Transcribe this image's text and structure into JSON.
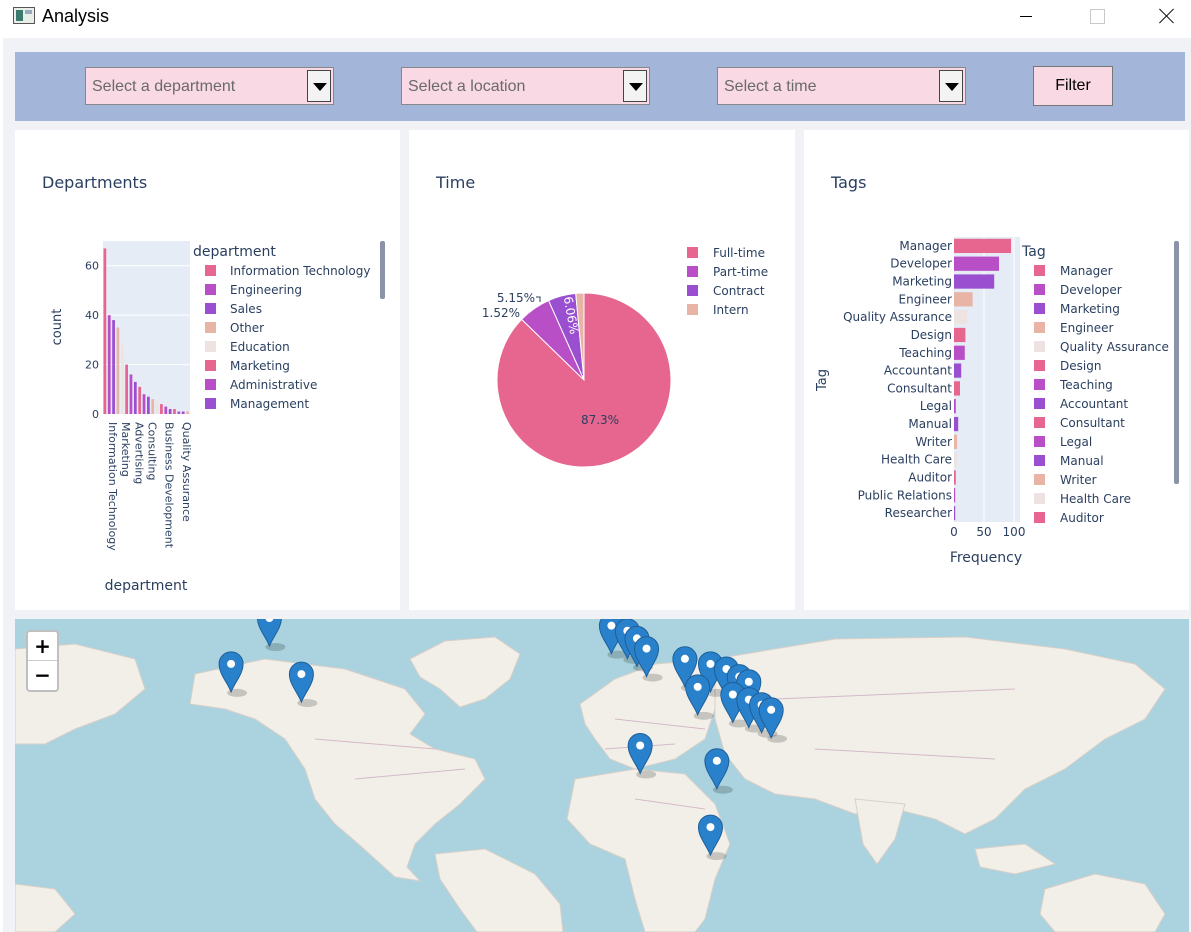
{
  "window": {
    "title": "Analysis"
  },
  "filters": {
    "department_placeholder": "Select a department",
    "location_placeholder": "Select a location",
    "time_placeholder": "Select a time",
    "filter_label": "Filter"
  },
  "colors": {
    "series": [
      "#e6668f",
      "#b94fc6",
      "#9a4fd0",
      "#e8b4a6",
      "#ede4e2",
      "#e6668f",
      "#b94fc6",
      "#9a4fd0"
    ],
    "plot_bg": "#e5ecf6",
    "map_water": "#aad3df",
    "map_land": "#f2efe9",
    "marker": "#2a81cb"
  },
  "chart_data": [
    {
      "id": "departments",
      "type": "bar",
      "title": "Departments",
      "xlabel": "department",
      "ylabel": "count",
      "ylim": [
        0,
        70
      ],
      "yticks": [
        0,
        20,
        40,
        60
      ],
      "legend_title": "department",
      "legend": [
        "Information Technology",
        "Engineering",
        "Sales",
        "Other",
        "Education",
        "Marketing",
        "Administrative",
        "Management"
      ],
      "tick_labels": [
        "Information Technology",
        "Marketing",
        "Advertising",
        "Consulting",
        "Business Development",
        "Quality Assurance"
      ],
      "values": [
        67,
        40,
        38,
        35,
        28,
        20,
        16,
        13,
        11,
        8,
        7,
        6,
        5,
        4,
        3,
        2,
        2,
        1,
        1,
        1
      ]
    },
    {
      "id": "time",
      "type": "pie",
      "title": "Time",
      "categories": [
        "Full-time",
        "Part-time",
        "Contract",
        "Intern"
      ],
      "values": [
        87.3,
        6.06,
        5.15,
        1.52
      ],
      "labels": [
        "87.3%",
        "6.06%",
        "5.15%",
        "1.52%"
      ]
    },
    {
      "id": "tags",
      "type": "bar",
      "orientation": "horizontal",
      "title": "Tags",
      "xlabel": "Frequency",
      "ylabel": "Tag",
      "xlim": [
        0,
        110
      ],
      "xticks": [
        0,
        50,
        100
      ],
      "legend_title": "Tag",
      "legend": [
        "Manager",
        "Developer",
        "Marketing",
        "Engineer",
        "Quality Assurance",
        "Design",
        "Teaching",
        "Accountant",
        "Consultant",
        "Legal",
        "Manual",
        "Writer",
        "Health Care",
        "Auditor"
      ],
      "categories": [
        "Manager",
        "Developer",
        "Marketing",
        "Engineer",
        "Quality Assurance",
        "Design",
        "Teaching",
        "Accountant",
        "Consultant",
        "Legal",
        "Manual",
        "Writer",
        "Health Care",
        "Auditor",
        "Public Relations",
        "Researcher"
      ],
      "values": [
        95,
        75,
        67,
        31,
        22,
        19,
        18,
        12,
        10,
        3,
        7,
        5,
        5,
        3,
        2,
        2
      ]
    }
  ],
  "map": {
    "zoom_in": "+",
    "zoom_out": "−",
    "markers": [
      {
        "lat": 60,
        "lon": -110
      },
      {
        "lat": 42,
        "lon": -122
      },
      {
        "lat": 38,
        "lon": -100
      },
      {
        "lat": 57,
        "lon": -3
      },
      {
        "lat": 55,
        "lon": 2
      },
      {
        "lat": 52,
        "lon": 5
      },
      {
        "lat": 48,
        "lon": 8
      },
      {
        "lat": 44,
        "lon": 20
      },
      {
        "lat": 42,
        "lon": 28
      },
      {
        "lat": 40,
        "lon": 33
      },
      {
        "lat": 37,
        "lon": 37
      },
      {
        "lat": 35,
        "lon": 40
      },
      {
        "lat": 33,
        "lon": 24
      },
      {
        "lat": 30,
        "lon": 35
      },
      {
        "lat": 28,
        "lon": 40
      },
      {
        "lat": 26,
        "lon": 44
      },
      {
        "lat": 24,
        "lon": 47
      },
      {
        "lat": 10,
        "lon": 6
      },
      {
        "lat": 4,
        "lon": 30
      },
      {
        "lat": -22,
        "lon": 28
      }
    ]
  }
}
